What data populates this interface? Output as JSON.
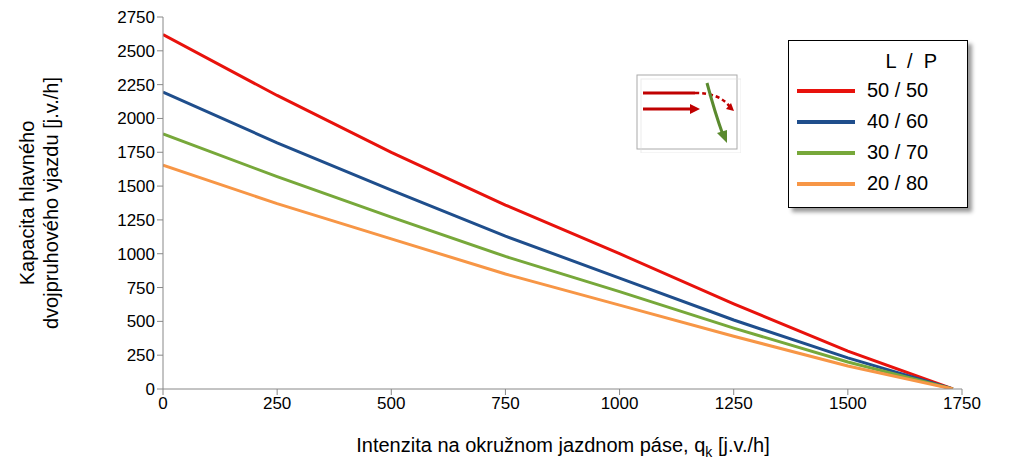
{
  "chart_data": {
    "type": "line",
    "x_label": {
      "text": "Intenzita na okružnom jazdnom páse, q",
      "subscript": "k",
      "suffix": " [j.v./h]"
    },
    "y_label": [
      "Kapacita hlavného",
      "dvojpruhového  vjazdu [j.v./h]"
    ],
    "legend_title": "L  /  P",
    "x": [
      0,
      250,
      500,
      750,
      1000,
      1250,
      1500,
      1730
    ],
    "series": [
      {
        "name": "50 / 50",
        "color": "#e8120c",
        "values": [
          2620,
          2170,
          1750,
          1360,
          1000,
          630,
          280,
          0
        ]
      },
      {
        "name": "40 / 60",
        "color": "#1f4e8c",
        "values": [
          2195,
          1820,
          1470,
          1130,
          820,
          510,
          230,
          0
        ]
      },
      {
        "name": "30 / 70",
        "color": "#77a83a",
        "values": [
          1885,
          1570,
          1270,
          980,
          720,
          450,
          200,
          0
        ]
      },
      {
        "name": "20 / 80",
        "color": "#f79646",
        "values": [
          1655,
          1370,
          1110,
          850,
          620,
          390,
          170,
          0
        ]
      }
    ],
    "xlim": [
      0,
      1750
    ],
    "xticks": [
      0,
      250,
      500,
      750,
      1000,
      1250,
      1500,
      1750
    ],
    "ylim": [
      0,
      2750
    ],
    "yticks": [
      0,
      250,
      500,
      750,
      1000,
      1250,
      1500,
      1750,
      2000,
      2250,
      2500,
      2750
    ],
    "grid": false,
    "legend": "top-right"
  }
}
